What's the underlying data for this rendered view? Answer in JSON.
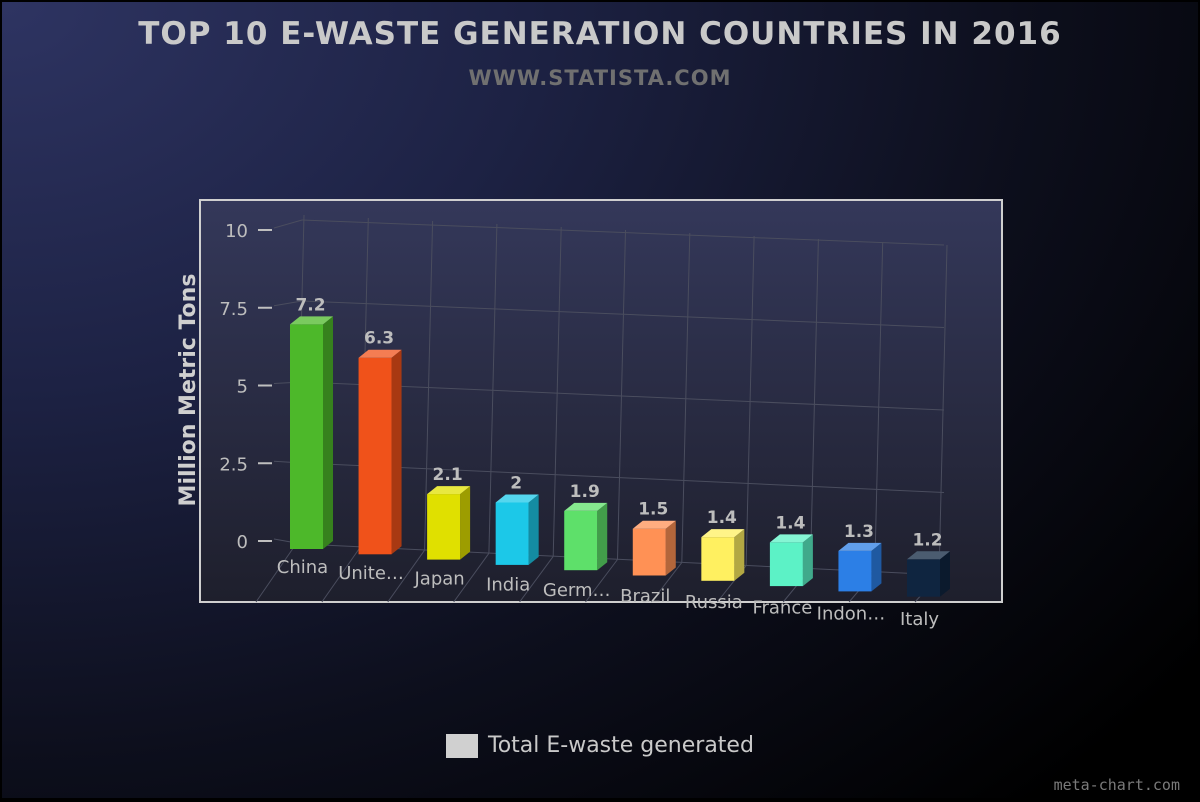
{
  "chart_data": {
    "type": "bar",
    "title": "TOP 10 E-WASTE GENERATION COUNTRIES IN 2016",
    "subtitle": "WWW.STATISTA.COM",
    "ylabel": "Million Metric Tons",
    "xlabel": "",
    "ylim": [
      0,
      10
    ],
    "yticks": [
      "0",
      "2.5",
      "5",
      "7.5",
      "10"
    ],
    "categories": [
      "China",
      "Unite…",
      "Japan",
      "India",
      "Germ…",
      "Brazil",
      "Russia",
      "France",
      "Indon…",
      "Italy"
    ],
    "series": [
      {
        "name": "Total E-waste generated",
        "values": [
          7.2,
          6.3,
          2.1,
          2,
          1.9,
          1.5,
          1.4,
          1.4,
          1.3,
          1.2
        ],
        "value_labels": [
          "7.2",
          "6.3",
          "2.1",
          "2",
          "1.9",
          "1.5",
          "1.4",
          "1.4",
          "1.3",
          "1.2"
        ],
        "colors": [
          "#4db82a",
          "#f0521a",
          "#e0e000",
          "#1cc8e8",
          "#5ee06a",
          "#ff9155",
          "#fff060",
          "#5cf2c6",
          "#2c7fe6",
          "#0f2540"
        ]
      }
    ],
    "grid": true,
    "legend_position": "bottom"
  },
  "watermark": "meta-chart.com"
}
